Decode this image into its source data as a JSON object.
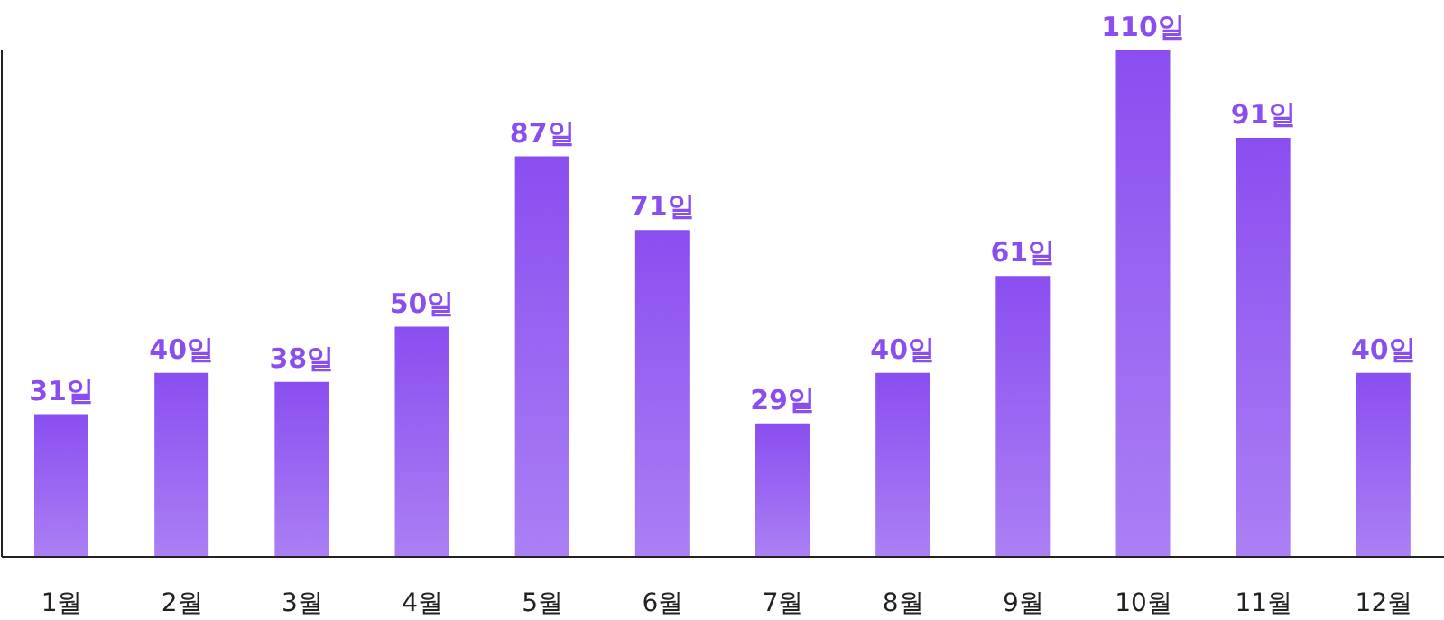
{
  "chart_data": {
    "type": "bar",
    "categories": [
      "1월",
      "2월",
      "3월",
      "4월",
      "5월",
      "6월",
      "7월",
      "8월",
      "9월",
      "10월",
      "11월",
      "12월"
    ],
    "values": [
      31,
      40,
      38,
      50,
      87,
      71,
      29,
      40,
      61,
      110,
      91,
      40
    ],
    "value_labels": [
      "31일",
      "40일",
      "38일",
      "50일",
      "87일",
      "71일",
      "29일",
      "40일",
      "61일",
      "110일",
      "91일",
      "40일"
    ],
    "color": "#8a4ef0",
    "grid": false,
    "legend": false
  }
}
